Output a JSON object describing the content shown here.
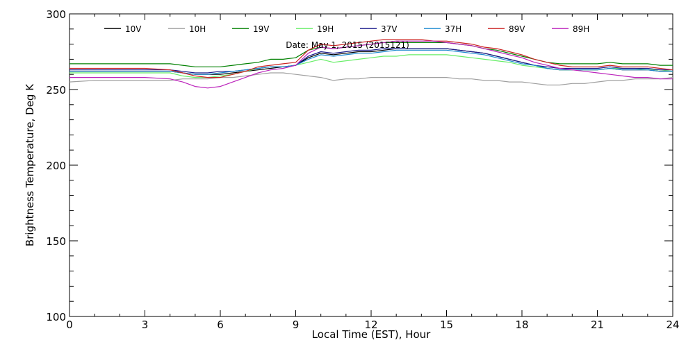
{
  "chart_data": {
    "type": "line",
    "title": "",
    "annotation": "Date: May 1, 2015 (2015121)",
    "xlabel": "Local Time (EST), Hour",
    "ylabel": "Brightness Temperature, Deg K",
    "xlim": [
      0,
      24
    ],
    "ylim": [
      100,
      300
    ],
    "xticks": [
      0,
      3,
      6,
      9,
      12,
      15,
      18,
      21,
      24
    ],
    "yticks": [
      100,
      150,
      200,
      250,
      300
    ],
    "grid": false,
    "legend_position": "top",
    "x": [
      0,
      1,
      2,
      3,
      4,
      4.5,
      5,
      5.5,
      6,
      6.5,
      7,
      7.5,
      8,
      8.5,
      9,
      9.5,
      10,
      10.5,
      11,
      11.5,
      12,
      12.5,
      13,
      13.5,
      14,
      14.5,
      15,
      15.5,
      16,
      16.5,
      17,
      17.5,
      18,
      18.5,
      19,
      19.5,
      20,
      20.5,
      21,
      21.5,
      22,
      22.5,
      23,
      23.5,
      24
    ],
    "series": [
      {
        "name": "10V",
        "color": "#000000",
        "values": [
          262,
          262,
          262,
          262,
          262,
          261,
          260,
          260,
          260,
          261,
          262,
          263,
          264,
          265,
          266,
          271,
          274,
          273,
          274,
          275,
          275,
          276,
          277,
          277,
          277,
          277,
          277,
          276,
          275,
          274,
          272,
          270,
          268,
          266,
          264,
          263,
          263,
          263,
          263,
          264,
          263,
          263,
          263,
          262,
          262
        ]
      },
      {
        "name": "10H",
        "color": "#a0a0a0",
        "values": [
          255,
          256,
          256,
          256,
          256,
          257,
          257,
          257,
          258,
          258,
          259,
          260,
          261,
          261,
          260,
          259,
          258,
          256,
          257,
          257,
          258,
          258,
          258,
          258,
          258,
          258,
          258,
          257,
          257,
          256,
          256,
          255,
          255,
          254,
          253,
          253,
          254,
          254,
          255,
          256,
          256,
          257,
          257,
          257,
          258
        ]
      },
      {
        "name": "19V",
        "color": "#008000",
        "values": [
          267,
          267,
          267,
          267,
          267,
          266,
          265,
          265,
          265,
          266,
          267,
          268,
          270,
          270,
          271,
          276,
          278,
          277,
          278,
          279,
          280,
          281,
          281,
          281,
          281,
          281,
          281,
          280,
          279,
          277,
          276,
          274,
          272,
          270,
          268,
          267,
          267,
          267,
          267,
          268,
          267,
          267,
          267,
          266,
          266
        ]
      },
      {
        "name": "19H",
        "color": "#66ee66",
        "values": [
          261,
          261,
          261,
          261,
          261,
          259,
          258,
          258,
          259,
          260,
          262,
          264,
          265,
          265,
          266,
          268,
          270,
          268,
          269,
          270,
          271,
          272,
          272,
          273,
          273,
          273,
          273,
          272,
          271,
          270,
          269,
          268,
          266,
          265,
          264,
          263,
          263,
          263,
          263,
          264,
          264,
          264,
          263,
          263,
          262
        ]
      },
      {
        "name": "37V",
        "color": "#1a1a8c",
        "values": [
          263,
          263,
          263,
          263,
          263,
          262,
          261,
          261,
          262,
          262,
          263,
          264,
          265,
          265,
          266,
          272,
          275,
          274,
          275,
          276,
          276,
          277,
          277,
          277,
          277,
          277,
          277,
          276,
          275,
          274,
          272,
          270,
          268,
          266,
          265,
          264,
          264,
          264,
          264,
          265,
          264,
          264,
          264,
          263,
          263
        ]
      },
      {
        "name": "37H",
        "color": "#1e8bd0",
        "values": [
          262,
          262,
          262,
          262,
          262,
          261,
          260,
          260,
          261,
          262,
          263,
          264,
          265,
          265,
          266,
          270,
          273,
          272,
          273,
          274,
          274,
          275,
          276,
          276,
          276,
          276,
          276,
          275,
          274,
          273,
          271,
          269,
          267,
          266,
          264,
          263,
          263,
          263,
          263,
          264,
          263,
          263,
          263,
          262,
          262
        ]
      },
      {
        "name": "89V",
        "color": "#cc2222",
        "values": [
          264,
          264,
          264,
          264,
          263,
          261,
          259,
          258,
          258,
          260,
          262,
          265,
          266,
          267,
          268,
          276,
          280,
          279,
          280,
          281,
          282,
          283,
          283,
          283,
          283,
          282,
          282,
          281,
          280,
          278,
          277,
          275,
          273,
          270,
          268,
          266,
          265,
          265,
          265,
          266,
          265,
          265,
          265,
          264,
          263
        ]
      },
      {
        "name": "89H",
        "color": "#bb22bb",
        "values": [
          258,
          258,
          258,
          258,
          257,
          255,
          252,
          251,
          252,
          255,
          258,
          261,
          263,
          264,
          266,
          274,
          278,
          277,
          278,
          279,
          280,
          281,
          282,
          282,
          282,
          282,
          281,
          280,
          279,
          277,
          275,
          273,
          271,
          268,
          266,
          264,
          263,
          262,
          261,
          260,
          259,
          258,
          258,
          257,
          257
        ]
      }
    ]
  }
}
